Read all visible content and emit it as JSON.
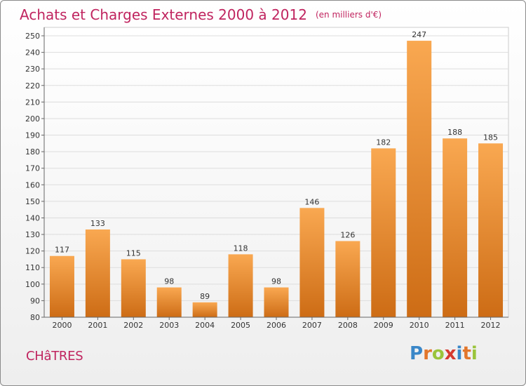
{
  "header": {
    "title": "Achats et Charges Externes 2000 à 2012",
    "unit": "(en milliers d'€)"
  },
  "footer": {
    "place": "CHâTRES",
    "brand": "Proxiti",
    "brand_letters": [
      {
        "ch": "P",
        "color": "#3a87c8"
      },
      {
        "ch": "r",
        "color": "#e2762b"
      },
      {
        "ch": "o",
        "color": "#9ac43b"
      },
      {
        "ch": "x",
        "color": "#d63a2f"
      },
      {
        "ch": "i",
        "color": "#3a87c8"
      },
      {
        "ch": "t",
        "color": "#e2762b"
      },
      {
        "ch": "i",
        "color": "#9ac43b"
      }
    ]
  },
  "colors": {
    "bar_light": "#f9a851",
    "bar_dark": "#cd6c15",
    "title": "#c0245f",
    "grid": "#dddddd",
    "axis": "#666666"
  },
  "chart_data": {
    "type": "bar",
    "title": "Achats et Charges Externes 2000 à 2012",
    "subtitle": "(en milliers d'€)",
    "xlabel": "",
    "ylabel": "",
    "categories": [
      "2000",
      "2001",
      "2002",
      "2003",
      "2004",
      "2005",
      "2006",
      "2007",
      "2008",
      "2009",
      "2010",
      "2011",
      "2012"
    ],
    "values": [
      117,
      133,
      115,
      98,
      89,
      118,
      98,
      146,
      126,
      182,
      247,
      188,
      185
    ],
    "ylim": [
      80,
      250
    ],
    "ytick_step": 10,
    "grid": true,
    "data_labels": true
  }
}
